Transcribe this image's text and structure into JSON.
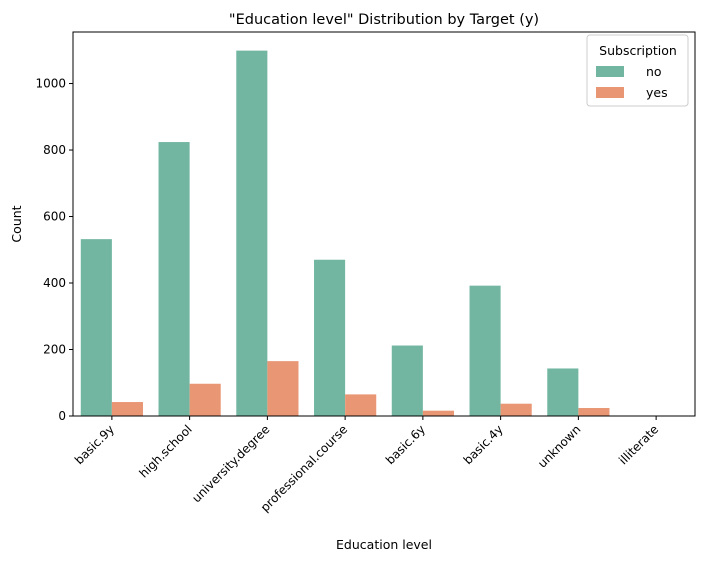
{
  "chart_data": {
    "type": "bar",
    "title": "\"Education level\" Distribution by Target (y)",
    "xlabel": "Education level",
    "ylabel": "Count",
    "categories": [
      "basic.9y",
      "high.school",
      "university.degree",
      "professional.course",
      "basic.6y",
      "basic.4y",
      "unknown",
      "illiterate"
    ],
    "series": [
      {
        "name": "no",
        "color": "#72b6a1",
        "values": [
          532,
          824,
          1099,
          470,
          212,
          392,
          143,
          1
        ]
      },
      {
        "name": "yes",
        "color": "#e99675",
        "values": [
          42,
          97,
          165,
          65,
          16,
          37,
          24,
          0
        ]
      }
    ],
    "ylim": [
      0,
      1155
    ],
    "yticks": [
      0,
      200,
      400,
      600,
      800,
      1000
    ],
    "grid": false,
    "legend": {
      "title": "Subscription",
      "position": "top-right"
    }
  }
}
